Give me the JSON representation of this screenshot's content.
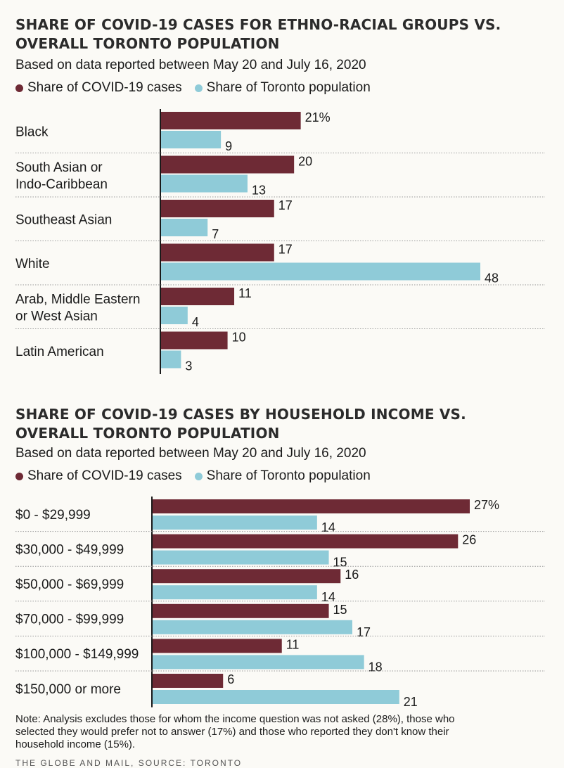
{
  "colors": {
    "cases": "#6e2a35",
    "population": "#8fcbd8"
  },
  "chart_data": [
    {
      "type": "bar",
      "orientation": "horizontal",
      "title": "SHARE OF COVID-19 CASES FOR ETHNO-RACIAL GROUPS VS. OVERALL TORONTO POPULATION",
      "subtitle": "Based on data reported between May 20 and July 16, 2020",
      "legend": [
        "Share of COVID-19 cases",
        "Share of Toronto population"
      ],
      "categories": [
        [
          "Black"
        ],
        [
          "South Asian or",
          "Indo-Caribbean"
        ],
        [
          "Southeast Asian"
        ],
        [
          "White"
        ],
        [
          "Arab, Middle Eastern",
          "or West Asian"
        ],
        [
          "Latin American"
        ]
      ],
      "series": [
        {
          "name": "Share of COVID-19 cases",
          "values": [
            21,
            20,
            17,
            17,
            11,
            10
          ],
          "labels": [
            "21%",
            "20",
            "17",
            "17",
            "11",
            "10"
          ]
        },
        {
          "name": "Share of Toronto population",
          "values": [
            9,
            13,
            7,
            48,
            4,
            3
          ],
          "labels": [
            "9",
            "13",
            "7",
            "48",
            "4",
            "3"
          ]
        }
      ],
      "unit": "%",
      "xlim": [
        0,
        48
      ]
    },
    {
      "type": "bar",
      "orientation": "horizontal",
      "title": "SHARE OF COVID-19 CASES BY HOUSEHOLD INCOME VS. OVERALL TORONTO POPULATION",
      "subtitle": "Based on data reported between May 20 and July 16, 2020",
      "legend": [
        "Share of COVID-19 cases",
        "Share of Toronto population"
      ],
      "categories": [
        [
          "$0 - $29,999"
        ],
        [
          "$30,000 - $49,999"
        ],
        [
          "$50,000 - $69,999"
        ],
        [
          "$70,000 - $99,999"
        ],
        [
          "$100,000 - $149,999"
        ],
        [
          "$150,000 or more"
        ]
      ],
      "series": [
        {
          "name": "Share of COVID-19 cases",
          "values": [
            27,
            26,
            16,
            15,
            11,
            6
          ],
          "labels": [
            "27%",
            "26",
            "16",
            "15",
            "11",
            "6"
          ]
        },
        {
          "name": "Share of Toronto population",
          "values": [
            14,
            15,
            14,
            17,
            18,
            21
          ],
          "labels": [
            "14",
            "15",
            "14",
            "17",
            "18",
            "21"
          ]
        }
      ],
      "unit": "%",
      "xlim": [
        0,
        27
      ]
    }
  ],
  "note": "Note: Analysis excludes those for whom the income question was not asked (28%), those who selected they would prefer not to answer (17%) and those who reported they don't know their household income (15%).",
  "footer": "THE GLOBE AND MAIL, SOURCE: TORONTO"
}
